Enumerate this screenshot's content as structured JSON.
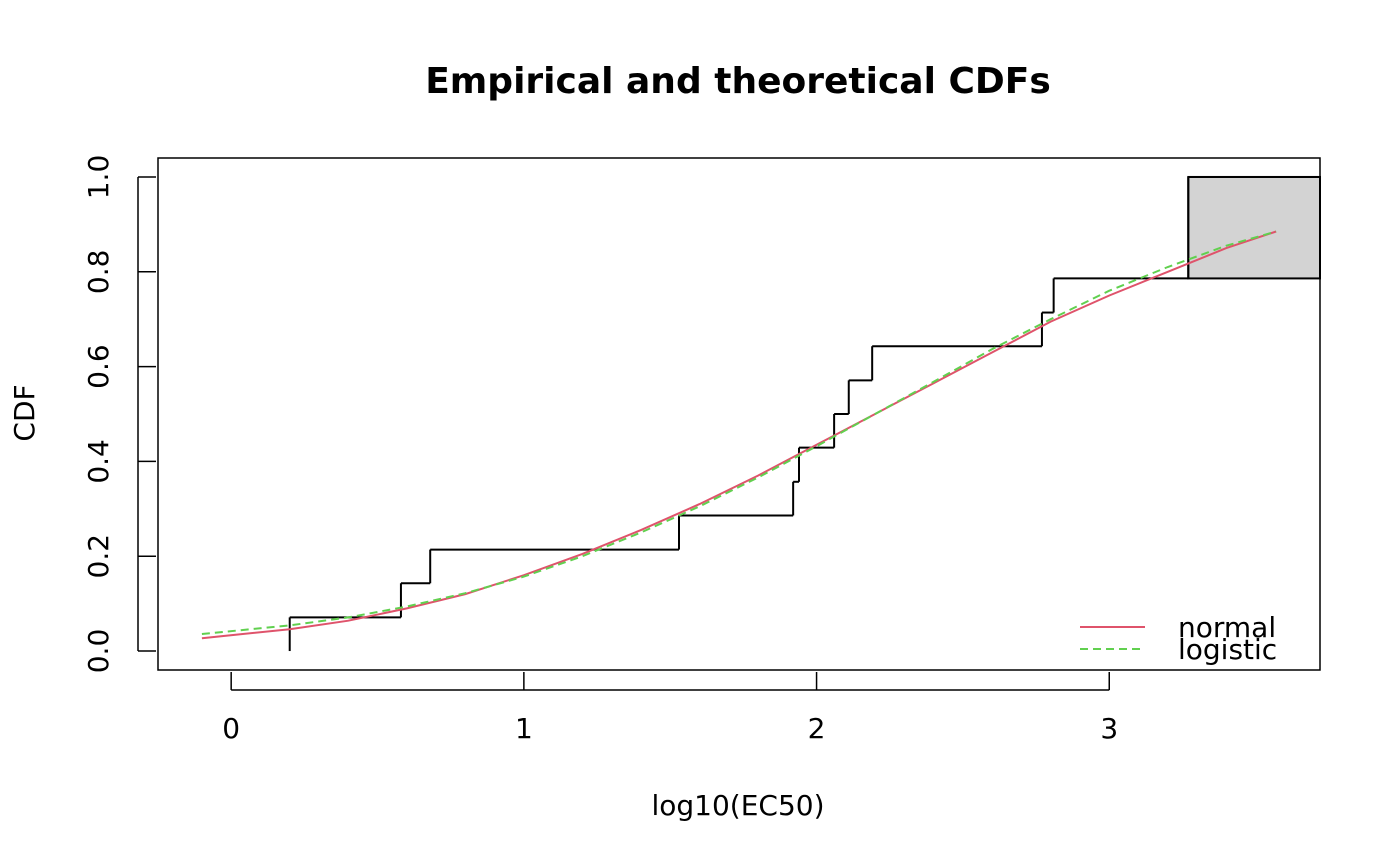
{
  "chart_data": {
    "type": "line",
    "title": "Empirical and theoretical CDFs",
    "xlabel": "log10(EC50)",
    "ylabel": "CDF",
    "xlim": [
      -0.25,
      3.72
    ],
    "ylim": [
      -0.04,
      1.04
    ],
    "x_ticks": [
      0,
      1,
      2,
      3
    ],
    "x_tick_labels": [
      "0",
      "1",
      "2",
      "3"
    ],
    "y_ticks": [
      0.0,
      0.2,
      0.4,
      0.6,
      0.8,
      1.0
    ],
    "y_tick_labels": [
      "0.0",
      "0.2",
      "0.4",
      "0.6",
      "0.8",
      "1.0"
    ],
    "grid": false,
    "legend_position": "bottom-right",
    "empirical": {
      "x": [
        0.2,
        0.58,
        0.68,
        1.53,
        1.92,
        1.94,
        2.06,
        2.11,
        2.19,
        2.77,
        2.81,
        3.27
      ],
      "y": [
        0.071,
        0.143,
        0.214,
        0.286,
        0.357,
        0.429,
        0.5,
        0.571,
        0.643,
        0.714,
        0.786,
        1.0
      ],
      "color": "#000000"
    },
    "shaded_region": {
      "x": [
        3.27,
        3.72
      ],
      "y": [
        0.786,
        1.0
      ],
      "color": "#d3d3d3"
    },
    "series": [
      {
        "name": "normal",
        "color": "#df536b",
        "dash": "solid",
        "x": [
          -0.1,
          0.2,
          0.4,
          0.6,
          0.8,
          1.0,
          1.2,
          1.4,
          1.6,
          1.8,
          2.0,
          2.2,
          2.4,
          2.6,
          2.8,
          3.0,
          3.2,
          3.4,
          3.57
        ],
        "values": [
          0.027,
          0.046,
          0.064,
          0.09,
          0.12,
          0.16,
          0.205,
          0.255,
          0.31,
          0.37,
          0.435,
          0.5,
          0.565,
          0.63,
          0.695,
          0.75,
          0.8,
          0.85,
          0.885
        ]
      },
      {
        "name": "logistic",
        "color": "#61d04f",
        "dash": "dashed",
        "x": [
          -0.1,
          0.2,
          0.4,
          0.6,
          0.8,
          1.0,
          1.2,
          1.4,
          1.6,
          1.8,
          2.0,
          2.2,
          2.4,
          2.6,
          2.8,
          3.0,
          3.2,
          3.4,
          3.57
        ],
        "values": [
          0.036,
          0.054,
          0.071,
          0.094,
          0.122,
          0.157,
          0.2,
          0.25,
          0.305,
          0.366,
          0.432,
          0.5,
          0.568,
          0.637,
          0.7,
          0.76,
          0.81,
          0.855,
          0.885
        ]
      }
    ]
  }
}
